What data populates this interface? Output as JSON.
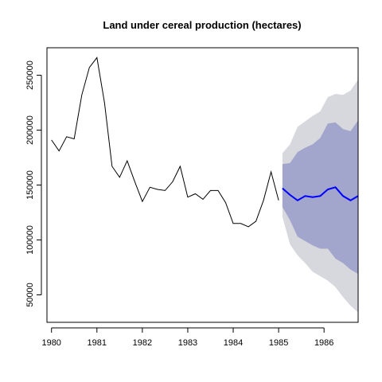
{
  "chart_data": {
    "type": "line",
    "title": "Land under cereal production (hectares)",
    "xlabel": "",
    "ylabel": "",
    "xlim": [
      1979.9,
      1986.75
    ],
    "ylim": [
      25000,
      275000
    ],
    "x_ticks": [
      1980,
      1981,
      1982,
      1983,
      1984,
      1985,
      1986
    ],
    "y_ticks": [
      50000,
      100000,
      150000,
      200000,
      250000
    ],
    "x_tick_labels": [
      "1980",
      "1981",
      "1982",
      "1983",
      "1984",
      "1985",
      "1986"
    ],
    "y_tick_labels": [
      "50000",
      "100000",
      "150000",
      "200000",
      "250000"
    ],
    "grid": false,
    "legend": "none",
    "colors": {
      "history": "#000000",
      "forecast": "#0000ff",
      "pi80": "#a3a6cc",
      "pi95": "#d7d7de"
    },
    "history": {
      "x": [
        1980.0,
        1980.1667,
        1980.3333,
        1980.5,
        1980.6667,
        1980.8333,
        1981.0,
        1981.1667,
        1981.3333,
        1981.5,
        1981.6667,
        1981.8333,
        1982.0,
        1982.1667,
        1982.3333,
        1982.5,
        1982.6667,
        1982.8333,
        1983.0,
        1983.1667,
        1983.3333,
        1983.5,
        1983.6667,
        1983.8333,
        1984.0,
        1984.1667,
        1984.3333,
        1984.5,
        1984.6667,
        1984.8333,
        1985.0
      ],
      "y": [
        191000,
        181000,
        194000,
        192000,
        232000,
        257000,
        266000,
        225000,
        167000,
        157000,
        172000,
        153000,
        135000,
        148000,
        146000,
        145000,
        153000,
        167000,
        139000,
        142000,
        137000,
        145000,
        145000,
        134000,
        115000,
        115000,
        112000,
        117000,
        136000,
        162000,
        136000
      ]
    },
    "forecast": {
      "x": [
        1985.0833,
        1985.25,
        1985.4167,
        1985.5833,
        1985.75,
        1985.9167,
        1986.0833,
        1986.25,
        1986.4167,
        1986.5833,
        1986.75
      ],
      "y": [
        147000,
        141000,
        136000,
        140000,
        139000,
        140000,
        146000,
        148000,
        140000,
        136000,
        140000
      ],
      "lo80": [
        130000,
        118000,
        103000,
        99000,
        95000,
        92000,
        92000,
        83000,
        79000,
        73000,
        69000
      ],
      "hi80": [
        169000,
        170000,
        180000,
        184000,
        187000,
        193000,
        206000,
        207000,
        201000,
        199000,
        209000
      ],
      "lo95": [
        121000,
        96000,
        86000,
        79000,
        71000,
        67000,
        63000,
        57000,
        48000,
        40000,
        34000
      ],
      "hi95": [
        179000,
        187000,
        203000,
        208000,
        213000,
        217000,
        230000,
        233000,
        232000,
        236000,
        246000
      ]
    }
  }
}
